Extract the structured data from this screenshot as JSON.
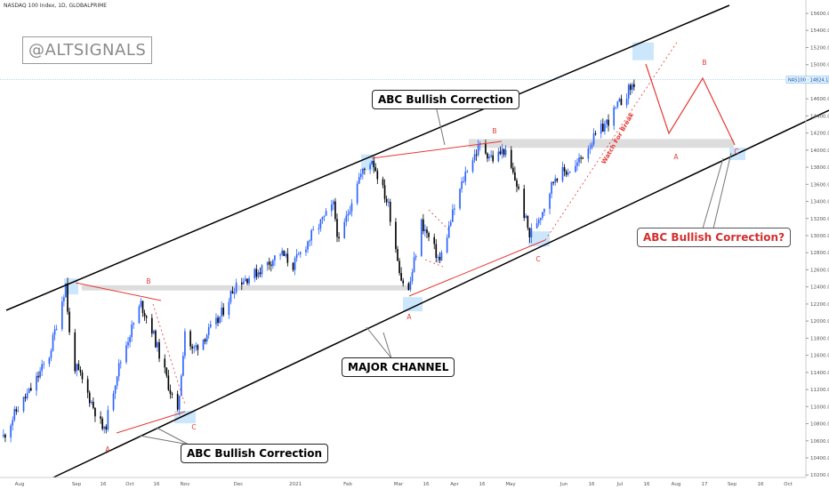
{
  "header": {
    "title": "NASDAQ 100 Index, 1D, GLOBALPRIME"
  },
  "watermark": "@ALTSIGNALS",
  "price_tag": "NAS100 · 14824.13",
  "callouts": {
    "top": "ABC Bullish Correction",
    "channel": "MAJOR CHANNEL",
    "bottom": "ABC Bullish Correction",
    "future": "ABC Bullish Correction?"
  },
  "rotated_label": "Watch For Break",
  "wave_labels": [
    {
      "text": "A",
      "date": "2020-09-21",
      "price": 10540
    },
    {
      "text": "B",
      "date": "2020-10-13",
      "price": 12430
    },
    {
      "text": "C",
      "date": "2020-11-02",
      "price": 10740
    },
    {
      "text": "B",
      "date": "2021-04-19",
      "price": 14180
    },
    {
      "text": "A",
      "date": "2021-03-08",
      "price": 12050
    },
    {
      "text": "C",
      "date": "2021-05-14",
      "price": 12780
    },
    {
      "text": "A",
      "date": "2021-08-06",
      "price": 13880
    },
    {
      "text": "B",
      "date": "2021-08-18",
      "price": 15030
    },
    {
      "text": "C",
      "date": "2021-09-04",
      "price": 13970
    }
  ],
  "colors": {
    "up": "#2962ff",
    "down": "#000000",
    "red": "#e53935",
    "zone": "#bbdefb",
    "band": "#d9d9d9",
    "axis_text": "#555555",
    "price_line": "#64b5f6"
  },
  "chart_data": {
    "type": "candlestick",
    "title": "NASDAQ 100 Index, 1D, GLOBALPRIME",
    "y_ticks": [
      10200,
      10400,
      10600,
      10800,
      11000,
      11200,
      11400,
      11600,
      11800,
      12000,
      12200,
      12400,
      12600,
      12800,
      13000,
      13200,
      13400,
      13600,
      13800,
      14000,
      14200,
      14400,
      14600,
      14800,
      15000,
      15200,
      15400,
      15600
    ],
    "x_ticks": [
      "Aug",
      "Sep",
      "16",
      "Oct",
      "16",
      "Nov",
      "Dec",
      "2021",
      "Feb",
      "Mar",
      "16",
      "Apr",
      "16",
      "May",
      "Jun",
      "16",
      "Jul",
      "16",
      "Aug",
      "17",
      "Sep",
      "16",
      "Oct"
    ],
    "ylim": [
      10180,
      15700
    ],
    "last_price": 14824.13,
    "path_points": [
      {
        "date": "2020-07-30",
        "price": 10650
      },
      {
        "date": "2020-08-06",
        "price": 10950
      },
      {
        "date": "2020-08-14",
        "price": 11200
      },
      {
        "date": "2020-08-24",
        "price": 11600
      },
      {
        "date": "2020-08-31",
        "price": 12250
      },
      {
        "date": "2020-09-02",
        "price": 12430
      },
      {
        "date": "2020-09-05",
        "price": 11550
      },
      {
        "date": "2020-09-10",
        "price": 11350
      },
      {
        "date": "2020-09-16",
        "price": 11050
      },
      {
        "date": "2020-09-23",
        "price": 10700
      },
      {
        "date": "2020-09-30",
        "price": 11400
      },
      {
        "date": "2020-10-06",
        "price": 11800
      },
      {
        "date": "2020-10-13",
        "price": 12200
      },
      {
        "date": "2020-10-19",
        "price": 11900
      },
      {
        "date": "2020-10-26",
        "price": 11400
      },
      {
        "date": "2020-11-02",
        "price": 10900
      },
      {
        "date": "2020-11-06",
        "price": 11900
      },
      {
        "date": "2020-11-10",
        "price": 11650
      },
      {
        "date": "2020-11-24",
        "price": 12000
      },
      {
        "date": "2020-12-04",
        "price": 12450
      },
      {
        "date": "2020-12-14",
        "price": 12550
      },
      {
        "date": "2020-12-28",
        "price": 12800
      },
      {
        "date": "2021-01-04",
        "price": 12650
      },
      {
        "date": "2021-01-14",
        "price": 13000
      },
      {
        "date": "2021-01-26",
        "price": 13350
      },
      {
        "date": "2021-01-29",
        "price": 12900
      },
      {
        "date": "2021-02-08",
        "price": 13650
      },
      {
        "date": "2021-02-16",
        "price": 13900
      },
      {
        "date": "2021-02-25",
        "price": 13350
      },
      {
        "date": "2021-03-04",
        "price": 12500
      },
      {
        "date": "2021-03-08",
        "price": 12350
      },
      {
        "date": "2021-03-15",
        "price": 13150
      },
      {
        "date": "2021-03-25",
        "price": 12700
      },
      {
        "date": "2021-04-01",
        "price": 13250
      },
      {
        "date": "2021-04-09",
        "price": 13800
      },
      {
        "date": "2021-04-16",
        "price": 14050
      },
      {
        "date": "2021-04-23",
        "price": 13900
      },
      {
        "date": "2021-04-29",
        "price": 14000
      },
      {
        "date": "2021-05-06",
        "price": 13600
      },
      {
        "date": "2021-05-13",
        "price": 13000
      },
      {
        "date": "2021-05-20",
        "price": 13300
      },
      {
        "date": "2021-05-27",
        "price": 13700
      },
      {
        "date": "2021-06-07",
        "price": 13800
      },
      {
        "date": "2021-06-14",
        "price": 14050
      },
      {
        "date": "2021-06-25",
        "price": 14350
      },
      {
        "date": "2021-07-06",
        "price": 14700
      },
      {
        "date": "2021-07-09",
        "price": 14780
      }
    ]
  }
}
